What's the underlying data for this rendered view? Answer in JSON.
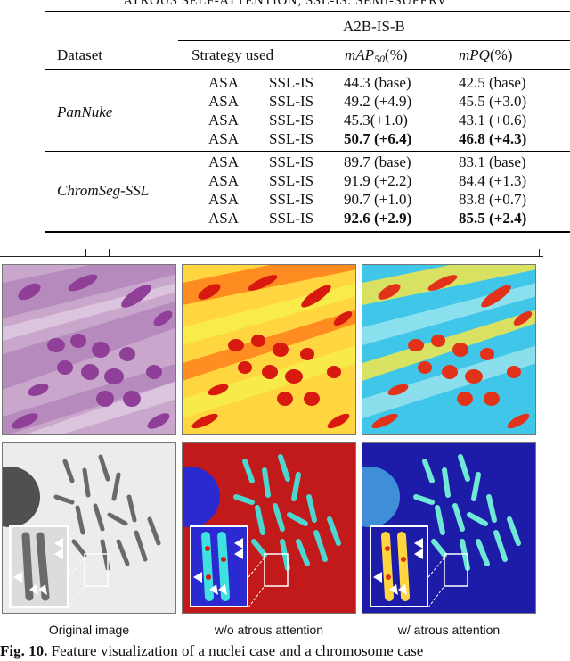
{
  "table": {
    "title": "ATROUS SELF-ATTENTION; SSL-IS: SEMI-SUPERV",
    "group_header": "A2B-IS-B",
    "columns": {
      "dataset": "Dataset",
      "strategy": "Strategy used",
      "map": "mAP50(%)",
      "mpq": "mPQ(%)"
    },
    "groups": [
      {
        "dataset": "PanNuke",
        "rows": [
          {
            "s1": "ASA",
            "s2": "SSL-IS",
            "map": "44.3 (base)",
            "mpq": "42.5 (base)",
            "bold": false
          },
          {
            "s1": "ASA",
            "s2": "SSL-IS",
            "map": "49.2 (+4.9)",
            "mpq": "45.5 (+3.0)",
            "bold": false
          },
          {
            "s1": "ASA",
            "s2": "SSL-IS",
            "map": "45.3(+1.0)",
            "mpq": "43.1 (+0.6)",
            "bold": false
          },
          {
            "s1": "ASA",
            "s2": "SSL-IS",
            "map": "50.7 (+6.4)",
            "mpq": "46.8 (+4.3)",
            "bold": true
          }
        ]
      },
      {
        "dataset": "ChromSeg-SSL",
        "rows": [
          {
            "s1": "ASA",
            "s2": "SSL-IS",
            "map": "89.7 (base)",
            "mpq": "83.1 (base)",
            "bold": false
          },
          {
            "s1": "ASA",
            "s2": "SSL-IS",
            "map": "91.9 (+2.2)",
            "mpq": "84.4 (+1.3)",
            "bold": false
          },
          {
            "s1": "ASA",
            "s2": "SSL-IS",
            "map": "90.7 (+1.0)",
            "mpq": "83.8 (+0.7)",
            "bold": false
          },
          {
            "s1": "ASA",
            "s2": "SSL-IS",
            "map": "92.6 (+2.9)",
            "mpq": "85.5 (+2.4)",
            "bold": true
          }
        ]
      }
    ]
  },
  "figure": {
    "labels": {
      "original": "Original image",
      "without": "w/o atrous attention",
      "with": "w/ atrous attention"
    },
    "caption_label": "Fig. 10.",
    "caption_text": " Feature visualization of a nuclei case and a chromosome case"
  }
}
